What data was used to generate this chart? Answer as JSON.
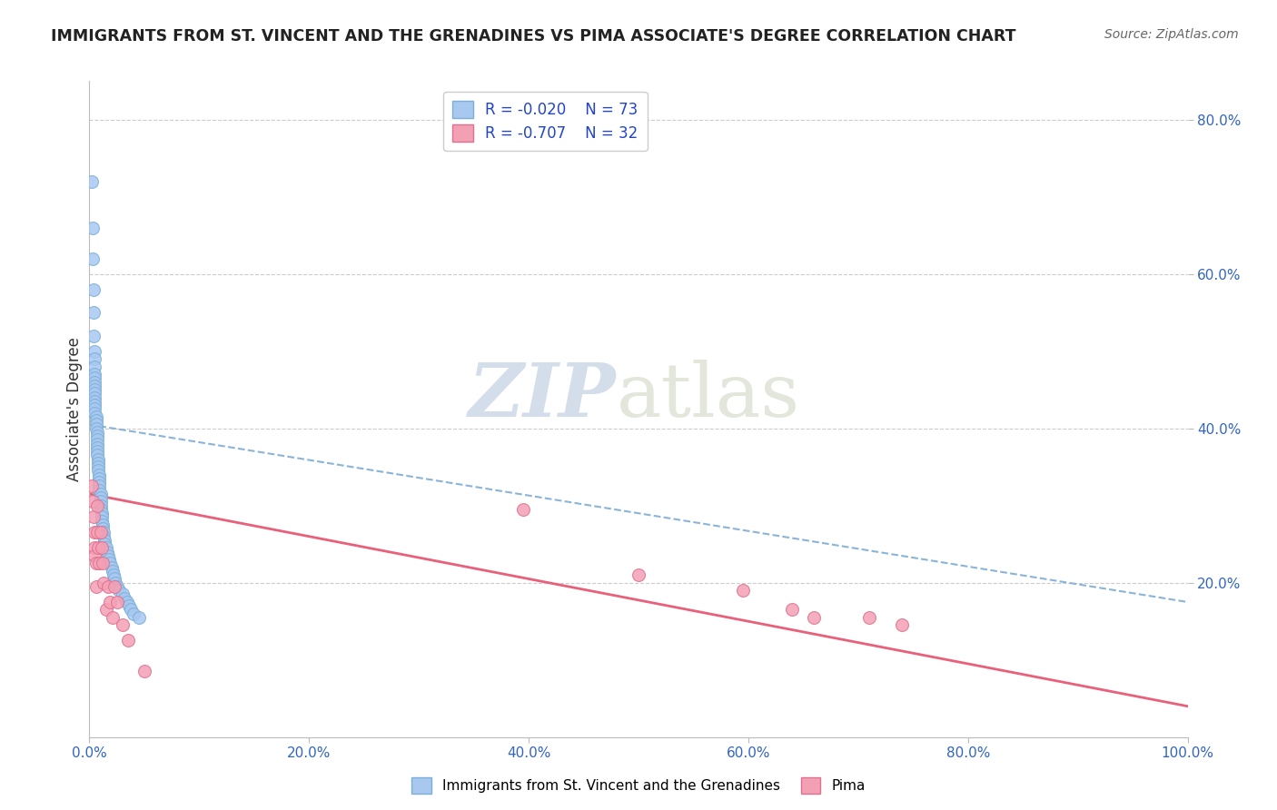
{
  "title": "IMMIGRANTS FROM ST. VINCENT AND THE GRENADINES VS PIMA ASSOCIATE'S DEGREE CORRELATION CHART",
  "source": "Source: ZipAtlas.com",
  "ylabel": "Associate's Degree",
  "xlim": [
    0.0,
    1.0
  ],
  "ylim": [
    0.0,
    0.85
  ],
  "xticks": [
    0.0,
    0.2,
    0.4,
    0.6,
    0.8,
    1.0
  ],
  "xtick_labels": [
    "0.0%",
    "20.0%",
    "40.0%",
    "60.0%",
    "80.0%",
    "100.0%"
  ],
  "yticks": [
    0.2,
    0.4,
    0.6,
    0.8
  ],
  "ytick_labels": [
    "20.0%",
    "40.0%",
    "60.0%",
    "80.0%"
  ],
  "legend_r1": "R = -0.020",
  "legend_n1": "N = 73",
  "legend_r2": "R = -0.707",
  "legend_n2": "N = 32",
  "color_blue": "#a8c8f0",
  "color_pink": "#f4a0b4",
  "blue_edge": "#7ab0d8",
  "pink_edge": "#e07090",
  "trendline_blue_color": "#8ab4d8",
  "trendline_pink_color": "#e8607a",
  "blue_x": [
    0.002,
    0.003,
    0.003,
    0.004,
    0.004,
    0.004,
    0.005,
    0.005,
    0.005,
    0.005,
    0.005,
    0.005,
    0.005,
    0.005,
    0.005,
    0.005,
    0.005,
    0.005,
    0.005,
    0.005,
    0.006,
    0.006,
    0.006,
    0.006,
    0.007,
    0.007,
    0.007,
    0.007,
    0.007,
    0.007,
    0.007,
    0.008,
    0.008,
    0.008,
    0.008,
    0.009,
    0.009,
    0.009,
    0.009,
    0.009,
    0.01,
    0.01,
    0.01,
    0.01,
    0.01,
    0.011,
    0.011,
    0.011,
    0.012,
    0.012,
    0.013,
    0.013,
    0.014,
    0.014,
    0.015,
    0.016,
    0.017,
    0.018,
    0.019,
    0.02,
    0.021,
    0.022,
    0.023,
    0.024,
    0.025,
    0.027,
    0.03,
    0.032,
    0.034,
    0.036,
    0.038,
    0.04,
    0.045
  ],
  "blue_y": [
    0.72,
    0.66,
    0.62,
    0.58,
    0.55,
    0.52,
    0.5,
    0.49,
    0.48,
    0.47,
    0.465,
    0.46,
    0.455,
    0.45,
    0.445,
    0.44,
    0.435,
    0.43,
    0.425,
    0.42,
    0.415,
    0.41,
    0.405,
    0.4,
    0.395,
    0.39,
    0.385,
    0.38,
    0.375,
    0.37,
    0.365,
    0.36,
    0.355,
    0.35,
    0.345,
    0.34,
    0.335,
    0.33,
    0.325,
    0.32,
    0.315,
    0.31,
    0.305,
    0.3,
    0.295,
    0.29,
    0.285,
    0.28,
    0.275,
    0.27,
    0.265,
    0.26,
    0.255,
    0.25,
    0.245,
    0.24,
    0.235,
    0.23,
    0.225,
    0.22,
    0.215,
    0.21,
    0.205,
    0.2,
    0.195,
    0.19,
    0.185,
    0.18,
    0.175,
    0.17,
    0.165,
    0.16,
    0.155
  ],
  "pink_x": [
    0.002,
    0.003,
    0.004,
    0.005,
    0.005,
    0.005,
    0.006,
    0.006,
    0.007,
    0.007,
    0.008,
    0.009,
    0.01,
    0.011,
    0.012,
    0.013,
    0.015,
    0.017,
    0.019,
    0.021,
    0.023,
    0.025,
    0.03,
    0.035,
    0.05,
    0.395,
    0.5,
    0.595,
    0.64,
    0.66,
    0.71,
    0.74
  ],
  "pink_y": [
    0.325,
    0.305,
    0.285,
    0.265,
    0.245,
    0.235,
    0.225,
    0.195,
    0.3,
    0.265,
    0.245,
    0.225,
    0.265,
    0.245,
    0.225,
    0.2,
    0.165,
    0.195,
    0.175,
    0.155,
    0.195,
    0.175,
    0.145,
    0.125,
    0.085,
    0.295,
    0.21,
    0.19,
    0.165,
    0.155,
    0.155,
    0.145
  ]
}
